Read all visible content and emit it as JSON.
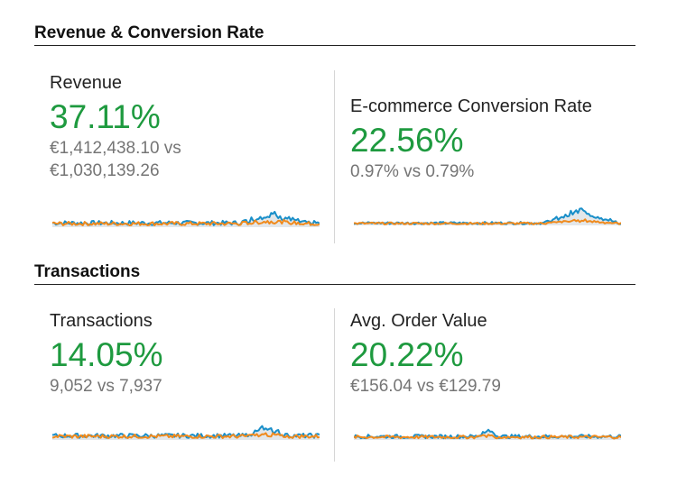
{
  "sections": [
    {
      "title": "Revenue & Conversion Rate",
      "cards": [
        {
          "label": "Revenue",
          "change": "37.11%",
          "compare_line1": "€1,412,438.10 vs",
          "compare_line2": "€1,030,139.26"
        },
        {
          "label": "E-commerce Conversion Rate",
          "change": "22.56%",
          "compare_line1": "0.97% vs 0.79%",
          "compare_line2": ""
        }
      ]
    },
    {
      "title": "Transactions",
      "cards": [
        {
          "label": "Transactions",
          "change": "14.05%",
          "compare_line1": "9,052 vs 7,937",
          "compare_line2": ""
        },
        {
          "label": "Avg. Order Value",
          "change": "20.22%",
          "compare_line1": "€156.04 vs €129.79",
          "compare_line2": ""
        }
      ]
    }
  ],
  "colors": {
    "current_series": "#1a8fc9",
    "previous_series": "#f08a1c",
    "positive_change": "#1e9a3f",
    "area_fill": "#e3e7ea"
  }
}
